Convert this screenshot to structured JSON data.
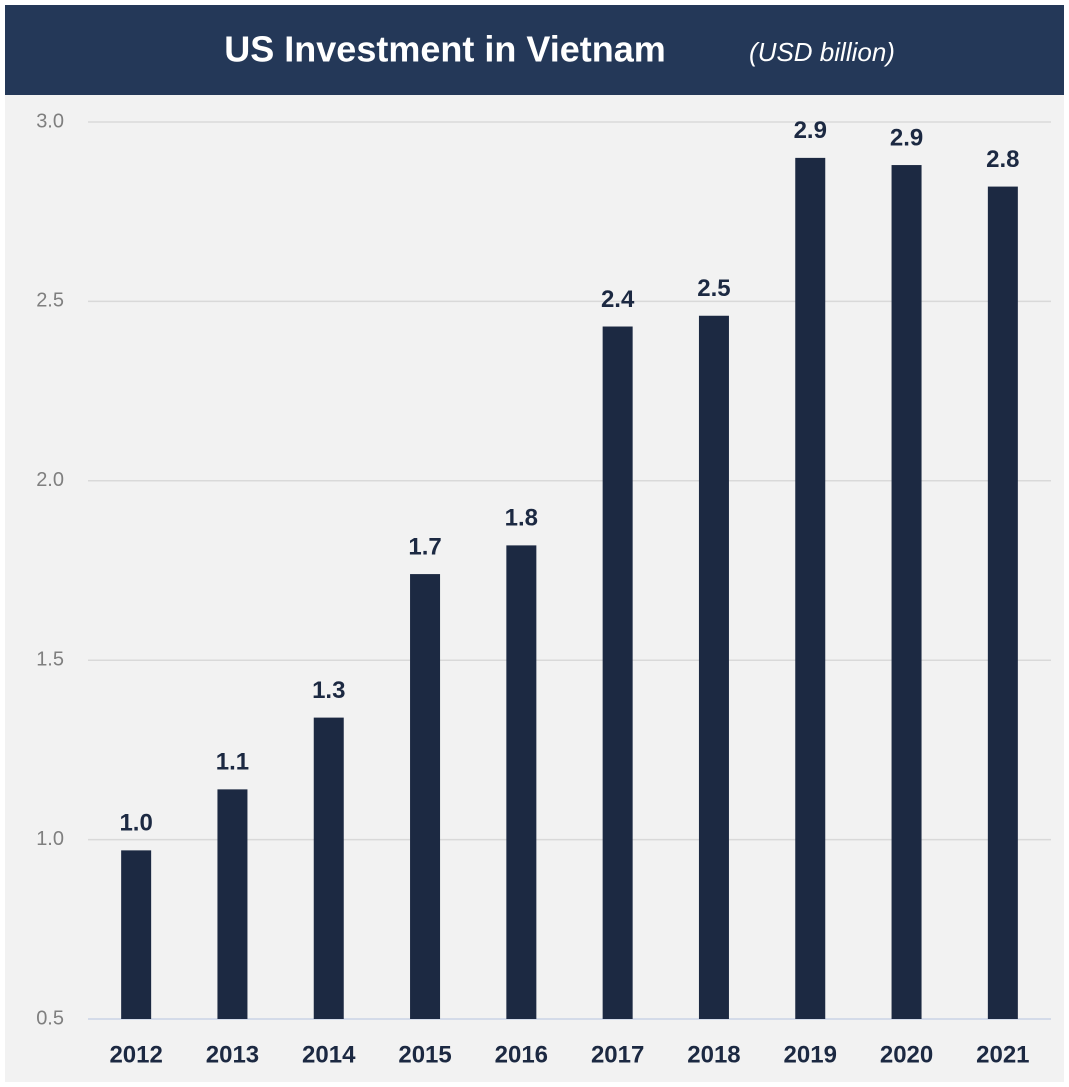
{
  "chart_data": {
    "type": "bar",
    "title": "US Investment in Vietnam",
    "subtitle": "(USD billion)",
    "categories": [
      "2012",
      "2013",
      "2014",
      "2015",
      "2016",
      "2017",
      "2018",
      "2019",
      "2020",
      "2021"
    ],
    "values": [
      0.97,
      1.14,
      1.34,
      1.74,
      1.82,
      2.43,
      2.46,
      2.9,
      2.88,
      2.82
    ],
    "value_labels": [
      "1.0",
      "1.1",
      "1.3",
      "1.7",
      "1.8",
      "2.4",
      "2.5",
      "2.9",
      "2.9",
      "2.8"
    ],
    "color": "#1c2942",
    "ylim": [
      0.5,
      3.0
    ],
    "yticks": [
      {
        "value": 0.5,
        "label": "0.5"
      },
      {
        "value": 1,
        "label": "1.0"
      },
      1.5,
      {
        "value": 2,
        "label": "2.0"
      },
      2.5,
      {
        "value": 3,
        "label": "3.0"
      }
    ],
    "grid": true
  }
}
